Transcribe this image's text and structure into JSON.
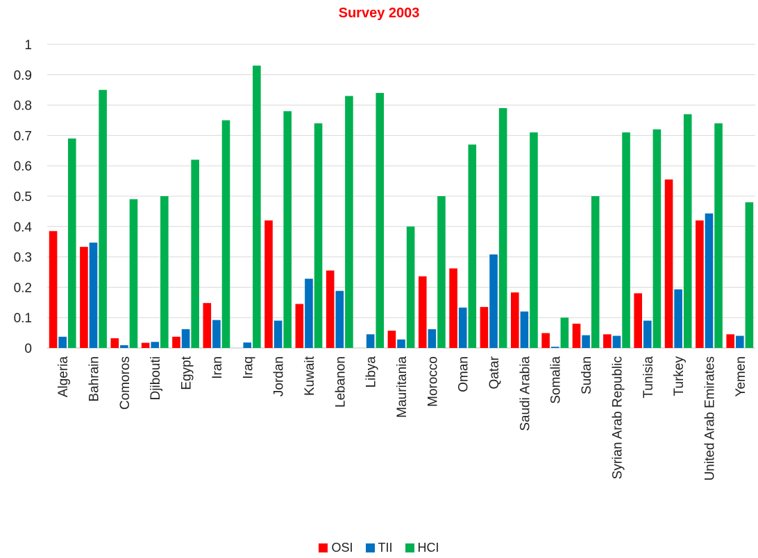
{
  "chart_data": {
    "type": "bar",
    "title": "Survey 2003",
    "title_color": "#ff0000",
    "xlabel": "",
    "ylabel": "",
    "ylim": [
      0,
      1
    ],
    "yticks": [
      "0",
      "0.1",
      "0.2",
      "0.3",
      "0.4",
      "0.5",
      "0.6",
      "0.7",
      "0.8",
      "0.9",
      "1"
    ],
    "grid": true,
    "legend_position": "bottom",
    "categories": [
      "Algeria",
      "Bahrain",
      "Comoros",
      "Djibouti",
      "Egypt",
      "Iran",
      "Iraq",
      "Jordan",
      "Kuwait",
      "Lebanon",
      "Libya",
      "Mauritania",
      "Morocco",
      "Oman",
      "Qatar",
      "Saudi Arabia",
      "Somalia",
      "Sudan",
      "Syrian Arab Republic",
      "Tunisia",
      "Turkey",
      "United Arab Emirates",
      "Yemen"
    ],
    "series": [
      {
        "name": "OSI",
        "color": "#ff0000",
        "values": [
          0.385,
          0.333,
          0.032,
          0.017,
          0.037,
          0.148,
          0.0,
          0.42,
          0.145,
          0.255,
          0.0,
          0.057,
          0.236,
          0.262,
          0.135,
          0.183,
          0.049,
          0.08,
          0.045,
          0.18,
          0.555,
          0.42,
          0.045
        ]
      },
      {
        "name": "TII",
        "color": "#0070c0",
        "values": [
          0.037,
          0.347,
          0.009,
          0.02,
          0.062,
          0.092,
          0.018,
          0.09,
          0.228,
          0.188,
          0.045,
          0.028,
          0.062,
          0.133,
          0.308,
          0.12,
          0.004,
          0.042,
          0.04,
          0.09,
          0.193,
          0.443,
          0.04
        ]
      },
      {
        "name": "HCI",
        "color": "#00b050",
        "values": [
          0.69,
          0.85,
          0.49,
          0.5,
          0.62,
          0.75,
          0.93,
          0.78,
          0.74,
          0.83,
          0.84,
          0.4,
          0.5,
          0.67,
          0.79,
          0.71,
          0.1,
          0.5,
          0.71,
          0.72,
          0.77,
          0.74,
          0.48
        ]
      }
    ]
  }
}
